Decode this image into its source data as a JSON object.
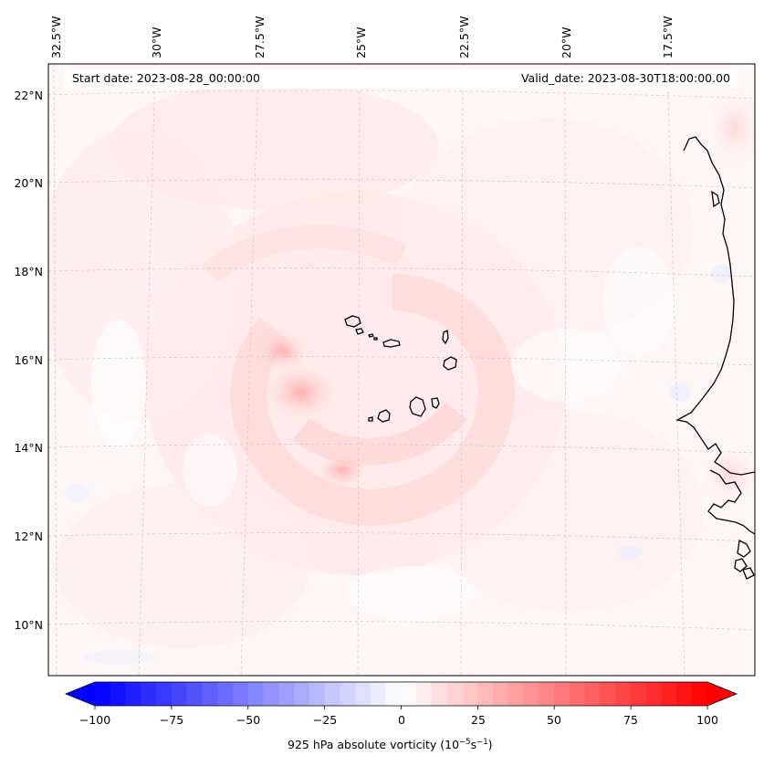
{
  "header": {
    "start_date": "Start date: 2023-08-28_00:00:00",
    "valid_date": "Valid_date: 2023-08-30T18:00:00.00"
  },
  "axes": {
    "lon_labels": [
      "32.5°W",
      "30°W",
      "27.5°W",
      "25°W",
      "22.5°W",
      "20°W",
      "17.5°W"
    ],
    "lat_labels": [
      "22°N",
      "20°N",
      "18°N",
      "16°N",
      "14°N",
      "12°N",
      "10°N"
    ]
  },
  "colorbar": {
    "ticks": [
      "−100",
      "−75",
      "−50",
      "−25",
      "0",
      "25",
      "50",
      "75",
      "100"
    ],
    "label_main": "925 hPa absolute vorticity (10",
    "label_exp1": "−5",
    "label_mid": "s",
    "label_exp2": "−1",
    "label_end": ")",
    "vmin": -100,
    "vmax": 100,
    "min_color": "#0000ff",
    "mid_color": "#ffffff",
    "max_color": "#ff0000"
  },
  "colors": {
    "map_background": "#fff6f6",
    "coastline": "#000000",
    "gridline": "#c8c8c8"
  }
}
